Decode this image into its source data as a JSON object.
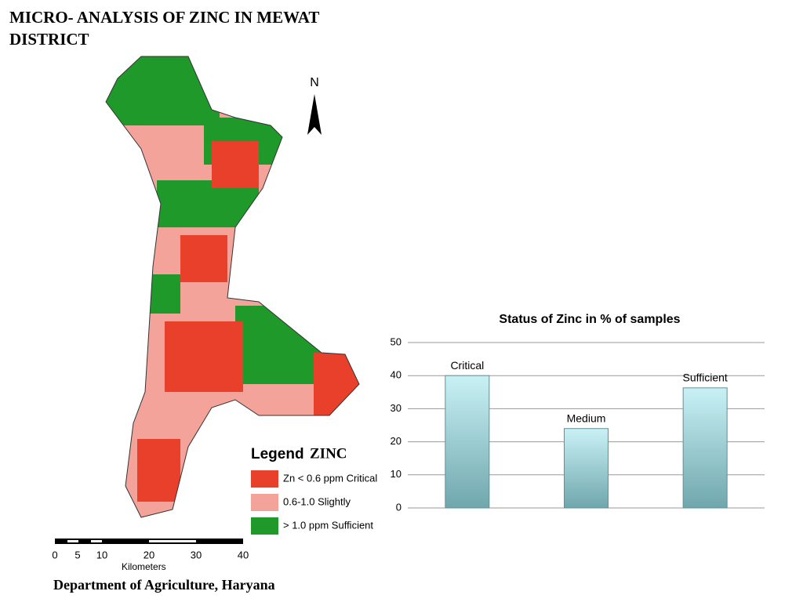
{
  "title": "MICRO- ANALYSIS OF ZINC IN MEWAT DISTRICT",
  "map": {
    "north": "N",
    "legend": {
      "title": "Legend",
      "subject": "ZINC",
      "entries": [
        "Zn < 0.6 ppm Critical",
        "0.6-1.0 Slightly",
        "> 1.0 ppm Sufficient"
      ]
    },
    "scale": {
      "ticks": [
        "0",
        "5",
        "10",
        "20",
        "30",
        "40"
      ],
      "unit": "Kilometers"
    },
    "credit": "Department of Agriculture, Haryana"
  },
  "chart_data": {
    "type": "bar",
    "title": "Status of Zinc in % of samples",
    "categories": [
      "Critical",
      "Medium",
      "Sufficient"
    ],
    "values": [
      40,
      24,
      36.3
    ],
    "color": "#9fd6dc",
    "ylim": [
      0,
      50
    ],
    "yticks": [
      0,
      10,
      20,
      30,
      40,
      50
    ],
    "grid": true
  }
}
